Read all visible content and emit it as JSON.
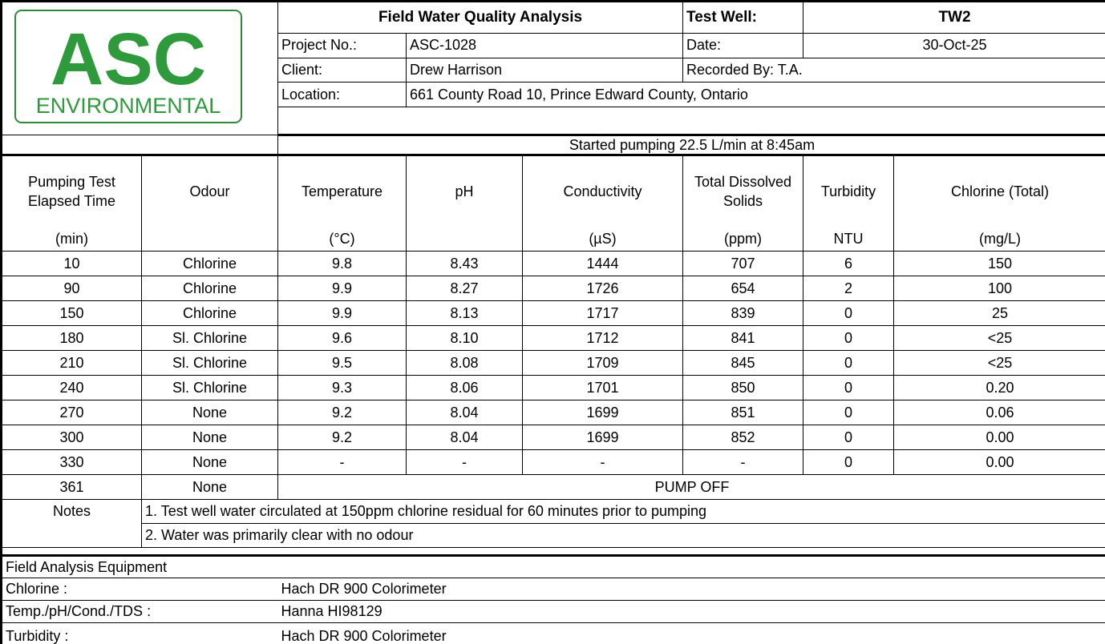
{
  "logo": {
    "name": "ASC",
    "subtitle": "ENVIRONMENTAL"
  },
  "header": {
    "title": "Field Water Quality Analysis",
    "test_well_label": "Test Well:",
    "test_well": "TW2",
    "project_label": "Project No.:",
    "project": "ASC-1028",
    "date_label": "Date:",
    "date": "30-Oct-25",
    "client_label": "Client:",
    "client": "Drew Harrison",
    "recorded": "Recorded  By: T.A.",
    "location_label": "Location:",
    "location": "661 County Road 10, Prince Edward County, Ontario",
    "pumping": "Started pumping  22.5 L/min at 8:45am"
  },
  "table": {
    "columns": [
      {
        "label": "Pumping Test Elapsed Time",
        "unit": "(min)"
      },
      {
        "label": "Odour"
      },
      {
        "label": "Temperature",
        "unit": "(°C)"
      },
      {
        "label": "pH"
      },
      {
        "label": "Conductivity",
        "unit": "(µS)"
      },
      {
        "label": "Total Dissolved Solids",
        "unit": "(ppm)"
      },
      {
        "label": "Turbidity",
        "unit": "NTU"
      },
      {
        "label": "Chlorine (Total)",
        "unit": "(mg/L)"
      }
    ],
    "rows": [
      [
        "10",
        "Chlorine",
        "9.8",
        "8.43",
        "1444",
        "707",
        "6",
        "150"
      ],
      [
        "90",
        "Chlorine",
        "9.9",
        "8.27",
        "1726",
        "654",
        "2",
        "100"
      ],
      [
        "150",
        "Chlorine",
        "9.9",
        "8.13",
        "1717",
        "839",
        "0",
        "25"
      ],
      [
        "180",
        "Sl. Chlorine",
        "9.6",
        "8.10",
        "1712",
        "841",
        "0",
        "<25"
      ],
      [
        "210",
        "Sl. Chlorine",
        "9.5",
        "8.08",
        "1709",
        "845",
        "0",
        "<25"
      ],
      [
        "240",
        "Sl. Chlorine",
        "9.3",
        "8.06",
        "1701",
        "850",
        "0",
        "0.20"
      ],
      [
        "270",
        "None",
        "9.2",
        "8.04",
        "1699",
        "851",
        "0",
        "0.06"
      ],
      [
        "300",
        "None",
        "9.2",
        "8.04",
        "1699",
        "852",
        "0",
        "0.00"
      ],
      [
        "330",
        "None",
        "-",
        "-",
        "-",
        "-",
        "0",
        "0.00"
      ],
      [
        "361",
        "None",
        "PUMP OFF"
      ]
    ]
  },
  "notes": {
    "label": "Notes",
    "items": [
      "1. Test well water circulated at 150ppm chlorine residual for 60 minutes prior to pumping",
      "2. Water was primarily clear with no odour"
    ]
  },
  "equipment": {
    "title": "Field Analysis Equipment",
    "items": [
      {
        "label": "Chlorine :",
        "value": "Hach DR 900 Colorimeter"
      },
      {
        "label": "Temp./pH/Cond./TDS :",
        "value": "Hanna HI98129"
      },
      {
        "label": "Turbidity :",
        "value": "Hach DR 900 Colorimeter"
      }
    ]
  }
}
